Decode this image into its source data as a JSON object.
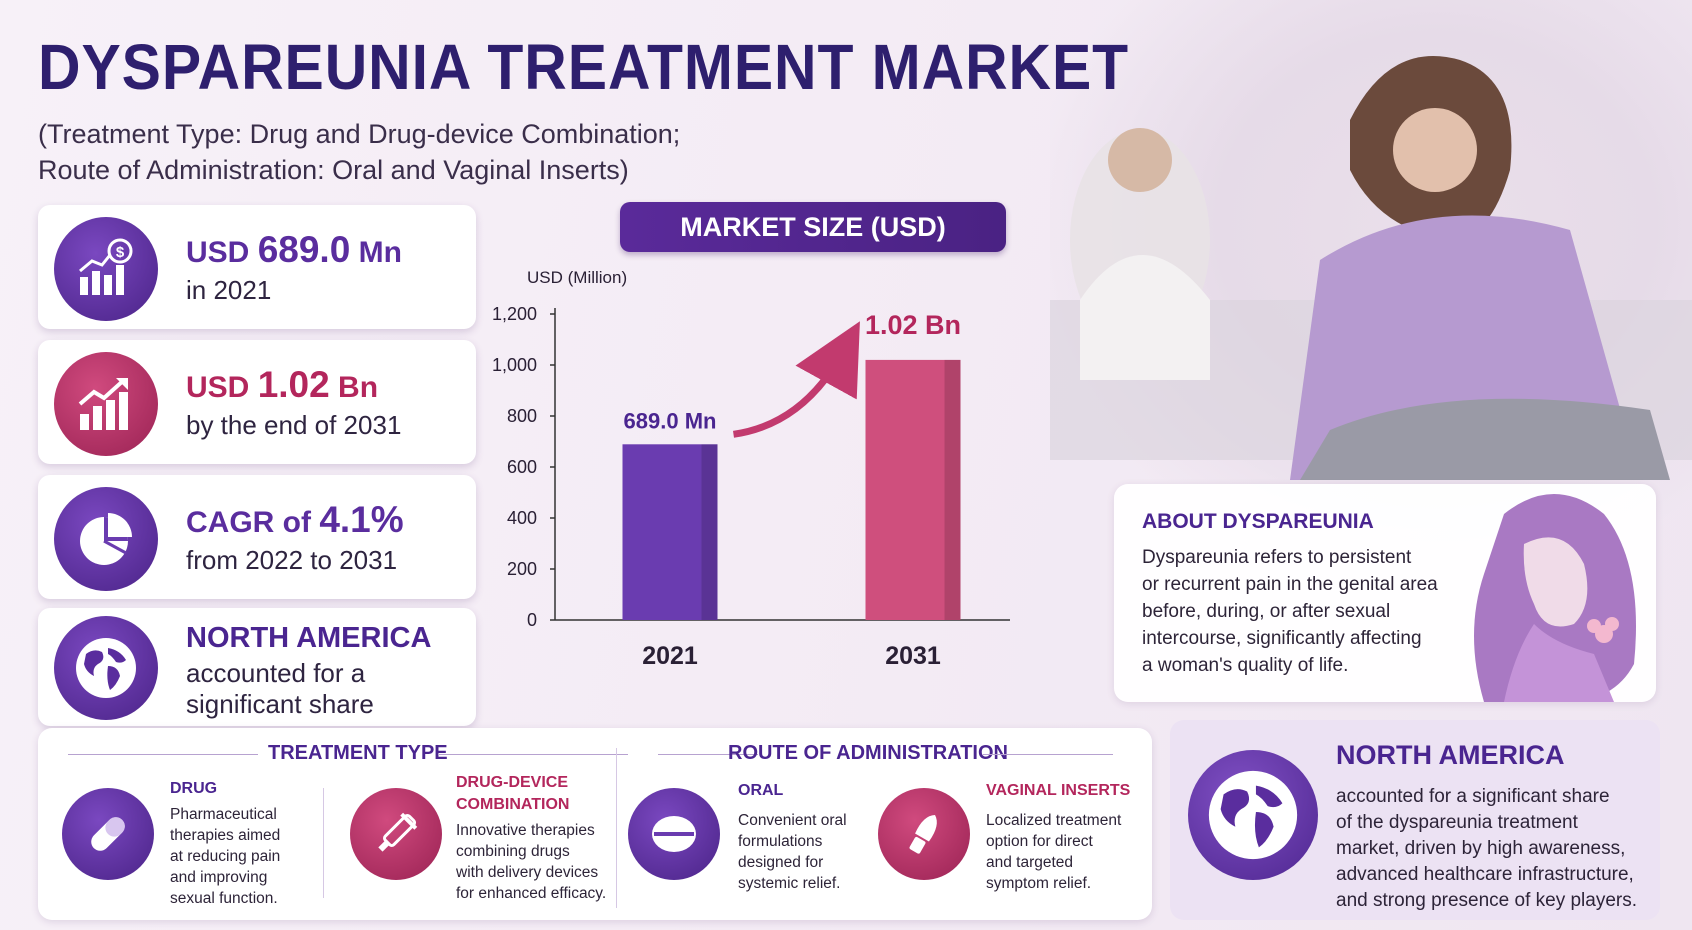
{
  "title": "DYSPAREUNIA TREATMENT MARKET",
  "subtitle_line1": "(Treatment Type: Drug and Drug-device Combination;",
  "subtitle_line2": "Route of Administration: Oral and Vaginal Inserts)",
  "stats": [
    {
      "prefix": "USD ",
      "value": "689.0",
      "suffix": " Mn",
      "caption": "in 2021",
      "icon": "money-growth-icon",
      "color": "#5a2d9e"
    },
    {
      "prefix": "USD ",
      "value": "1.02",
      "suffix": " Bn",
      "caption": "by the end of 2031",
      "icon": "bar-growth-icon",
      "color": "#b3265c"
    },
    {
      "prefix": "CAGR of ",
      "value": "4.1%",
      "suffix": "",
      "caption": "from 2022 to 2031",
      "icon": "pie-chart-icon",
      "color": "#5a2d9e"
    },
    {
      "prefix": "",
      "value": "NORTH AMERICA",
      "suffix": "",
      "caption1": "accounted for a",
      "caption2": "significant share",
      "icon": "globe-icon",
      "color": "#4a2590"
    }
  ],
  "chart_title": "MARKET SIZE (USD)",
  "chart_data": {
    "type": "bar",
    "categories": [
      "2021",
      "2031"
    ],
    "values": [
      689.0,
      1020
    ],
    "data_labels": [
      "689.0 Mn",
      "1.02 Bn"
    ],
    "ylabel": "USD (Million)",
    "ylim": [
      0,
      1200
    ],
    "yticks": [
      "0",
      "200",
      "400",
      "600",
      "800",
      "1,000",
      "1,200"
    ],
    "colors": [
      "#6a3cb0",
      "#cf4f7d"
    ],
    "grid": false
  },
  "about": {
    "heading": "ABOUT DYSPAREUNIA",
    "lines": [
      "Dyspareunia refers to persistent",
      "or recurrent pain in the genital area",
      "before, during, or after sexual",
      "intercourse, significantly affecting",
      "a woman's quality of life."
    ]
  },
  "treatment_type": {
    "heading": "TREATMENT TYPE",
    "items": [
      {
        "title": "DRUG",
        "lines": [
          "Pharmaceutical",
          "therapies aimed",
          "at reducing pain",
          "and improving",
          "sexual function."
        ],
        "icon": "capsule-icon"
      },
      {
        "title_lines": [
          "DRUG-DEVICE",
          "COMBINATION"
        ],
        "lines": [
          "Innovative therapies",
          "combining drugs",
          "with delivery devices",
          "for enhanced efficacy."
        ],
        "icon": "applicator-icon"
      }
    ]
  },
  "route": {
    "heading": "ROUTE OF ADMINISTRATION",
    "items": [
      {
        "title": "ORAL",
        "lines": [
          "Convenient oral",
          "formulations",
          "designed for",
          "systemic relief."
        ],
        "icon": "tablet-icon"
      },
      {
        "title": "VAGINAL INSERTS",
        "lines": [
          "Localized treatment",
          "option for direct",
          "and targeted",
          "symptom relief."
        ],
        "icon": "insert-icon"
      }
    ]
  },
  "north_america": {
    "heading": "NORTH AMERICA",
    "lines": [
      "accounted for a significant share",
      "of the dyspareunia treatment",
      "market, driven by high awareness,",
      "advanced healthcare infrastructure,",
      "and strong presence of key players."
    ]
  }
}
